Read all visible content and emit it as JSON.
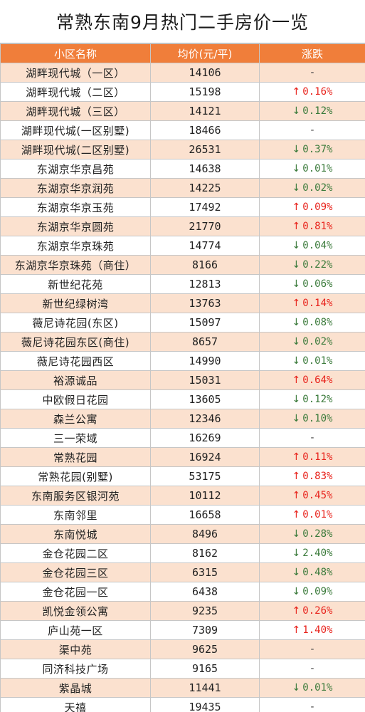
{
  "title": "常熟东南9月热门二手房价一览",
  "colors": {
    "header_bg": "#f07e3a",
    "row_alt_bg": "#fbe1cf",
    "up": "#e8231c",
    "down": "#3a7a3a"
  },
  "table": {
    "headers": [
      "小区名称",
      "均价(元/平)",
      "涨跌"
    ],
    "rows": [
      {
        "name": "湖畔现代城（一区）",
        "price": "14106",
        "dir": "flat",
        "change": "-"
      },
      {
        "name": "湖畔现代城（二区）",
        "price": "15198",
        "dir": "up",
        "change": "0.16%"
      },
      {
        "name": "湖畔现代城（三区）",
        "price": "14121",
        "dir": "down",
        "change": "0.12%"
      },
      {
        "name": "湖畔现代城(一区别墅)",
        "price": "18466",
        "dir": "flat",
        "change": "-"
      },
      {
        "name": "湖畔现代城(二区别墅)",
        "price": "26531",
        "dir": "down",
        "change": "0.37%"
      },
      {
        "name": "东湖京华京昌苑",
        "price": "14638",
        "dir": "down",
        "change": "0.01%"
      },
      {
        "name": "东湖京华京润苑",
        "price": "14225",
        "dir": "down",
        "change": "0.02%"
      },
      {
        "name": "东湖京华京玉苑",
        "price": "17492",
        "dir": "up",
        "change": "0.09%"
      },
      {
        "name": "东湖京华京圆苑",
        "price": "21770",
        "dir": "up",
        "change": "0.81%"
      },
      {
        "name": "东湖京华京珠苑",
        "price": "14774",
        "dir": "down",
        "change": "0.04%"
      },
      {
        "name": "东湖京华京珠苑（商住）",
        "price": "8166",
        "dir": "down",
        "change": "0.22%"
      },
      {
        "name": "新世纪花苑",
        "price": "12813",
        "dir": "down",
        "change": "0.06%"
      },
      {
        "name": "新世纪绿树湾",
        "price": "13763",
        "dir": "up",
        "change": "0.14%"
      },
      {
        "name": "薇尼诗花园(东区)",
        "price": "15097",
        "dir": "down",
        "change": "0.08%"
      },
      {
        "name": "薇尼诗花园东区(商住)",
        "price": "8657",
        "dir": "down",
        "change": "0.02%"
      },
      {
        "name": "薇尼诗花园西区",
        "price": "14990",
        "dir": "down",
        "change": "0.01%"
      },
      {
        "name": "裕源诚品",
        "price": "15031",
        "dir": "up",
        "change": "0.64%"
      },
      {
        "name": "中欧假日花园",
        "price": "13605",
        "dir": "down",
        "change": "0.12%"
      },
      {
        "name": "森兰公寓",
        "price": "12346",
        "dir": "down",
        "change": "0.10%"
      },
      {
        "name": "三一荣域",
        "price": "16269",
        "dir": "flat",
        "change": "-"
      },
      {
        "name": "常熟花园",
        "price": "16924",
        "dir": "up",
        "change": "0.11%"
      },
      {
        "name": "常熟花园(别墅)",
        "price": "53175",
        "dir": "up",
        "change": "0.83%"
      },
      {
        "name": "东南服务区银河苑",
        "price": "10112",
        "dir": "up",
        "change": "0.45%"
      },
      {
        "name": "东南邻里",
        "price": "16658",
        "dir": "up",
        "change": "0.01%"
      },
      {
        "name": "东南悦城",
        "price": "8496",
        "dir": "down",
        "change": "0.28%"
      },
      {
        "name": "金仓花园二区",
        "price": "8162",
        "dir": "down",
        "change": "2.40%"
      },
      {
        "name": "金仓花园三区",
        "price": "6315",
        "dir": "down",
        "change": "0.48%"
      },
      {
        "name": "金仓花园一区",
        "price": "6438",
        "dir": "down",
        "change": "0.09%"
      },
      {
        "name": "凯悦金领公寓",
        "price": "9235",
        "dir": "up",
        "change": "0.26%"
      },
      {
        "name": "庐山苑一区",
        "price": "7309",
        "dir": "up",
        "change": "1.40%"
      },
      {
        "name": "渠中苑",
        "price": "9625",
        "dir": "flat",
        "change": "-"
      },
      {
        "name": "同济科技广场",
        "price": "9165",
        "dir": "flat",
        "change": "-"
      },
      {
        "name": "紫晶城",
        "price": "11441",
        "dir": "down",
        "change": "0.01%"
      },
      {
        "name": "天禧",
        "price": "19435",
        "dir": "flat",
        "change": "-"
      }
    ]
  }
}
